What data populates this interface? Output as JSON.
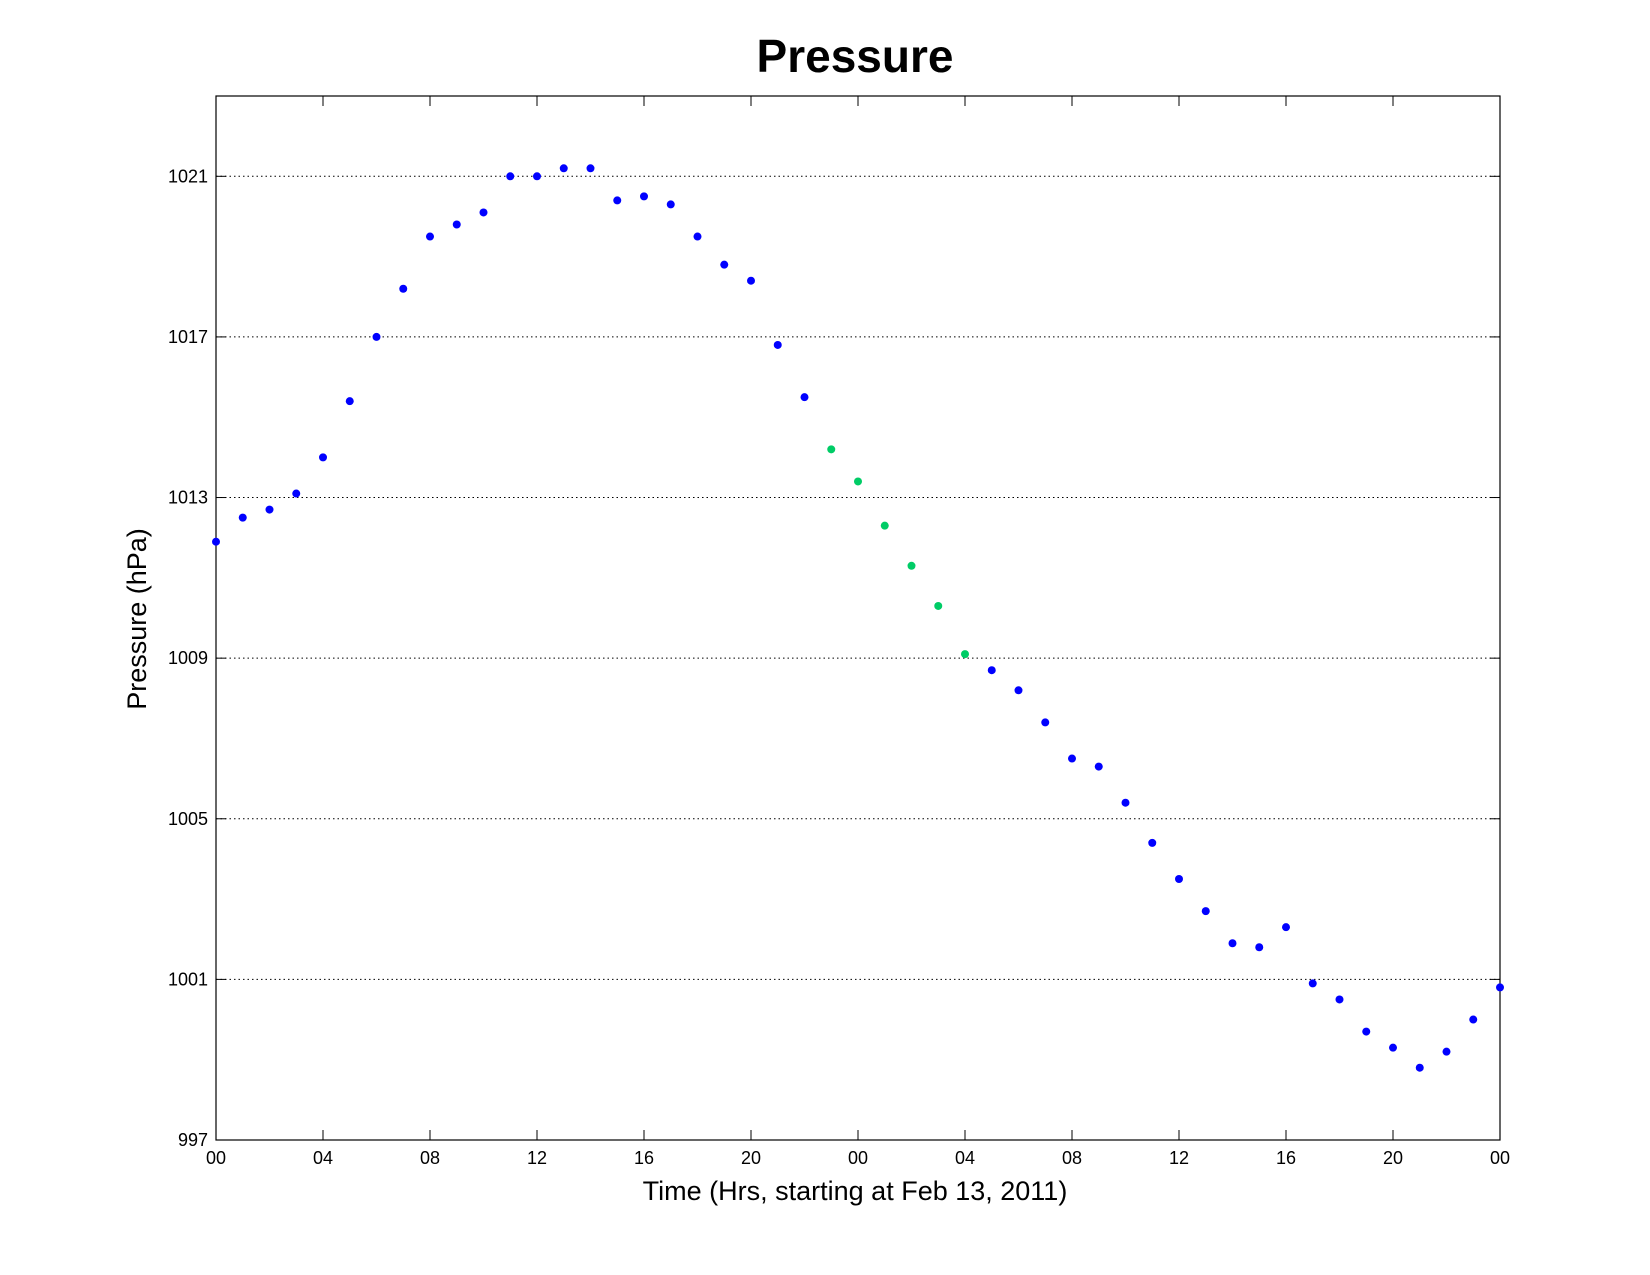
{
  "chart_data": {
    "type": "scatter",
    "title": "Pressure",
    "xlabel": "Time (Hrs, starting at Feb 13, 2011)",
    "ylabel": "Pressure (hPa)",
    "xlim": [
      "Feb 13, 2011 00:00",
      "Feb 15, 2011 00:00"
    ],
    "ylim": [
      997,
      1023
    ],
    "x_ticks": [
      "00",
      "04",
      "08",
      "12",
      "16",
      "20",
      "00",
      "04",
      "08",
      "12",
      "16",
      "20",
      "00"
    ],
    "y_ticks": [
      997,
      1001,
      1005,
      1009,
      1013,
      1017,
      1021
    ],
    "grid": "y-dotted",
    "legend": "none",
    "colors": {
      "series_1": "#0000ff",
      "series_2": "#00cc66"
    },
    "series": [
      {
        "color": "#0000ff",
        "x": [
          "Feb 13, 2011 00:00",
          "Feb 13, 2011 01:00",
          "Feb 13, 2011 02:00",
          "Feb 13, 2011 03:00",
          "Feb 13, 2011 04:00",
          "Feb 13, 2011 05:00",
          "Feb 13, 2011 06:00",
          "Feb 13, 2011 07:00",
          "Feb 13, 2011 08:00",
          "Feb 13, 2011 09:00",
          "Feb 13, 2011 10:00",
          "Feb 13, 2011 11:00",
          "Feb 13, 2011 12:00",
          "Feb 13, 2011 13:00",
          "Feb 13, 2011 14:00",
          "Feb 13, 2011 15:00",
          "Feb 13, 2011 16:00",
          "Feb 13, 2011 17:00",
          "Feb 13, 2011 18:00",
          "Feb 13, 2011 19:00",
          "Feb 13, 2011 20:00",
          "Feb 13, 2011 21:00",
          "Feb 13, 2011 22:00",
          "Feb 14, 2011 05:00",
          "Feb 14, 2011 06:00",
          "Feb 14, 2011 07:00",
          "Feb 14, 2011 08:00",
          "Feb 14, 2011 09:00",
          "Feb 14, 2011 10:00",
          "Feb 14, 2011 11:00",
          "Feb 14, 2011 12:00",
          "Feb 14, 2011 13:00",
          "Feb 14, 2011 14:00",
          "Feb 14, 2011 15:00",
          "Feb 14, 2011 16:00",
          "Feb 14, 2011 17:00",
          "Feb 14, 2011 18:00",
          "Feb 14, 2011 19:00",
          "Feb 14, 2011 20:00",
          "Feb 14, 2011 21:00",
          "Feb 14, 2011 22:00",
          "Feb 14, 2011 23:00",
          "Feb 15, 2011 00:00"
        ],
        "y": [
          1011.9,
          1012.5,
          1012.7,
          1013.1,
          1014.0,
          1015.4,
          1017.0,
          1018.2,
          1019.5,
          1019.8,
          1020.1,
          1021.0,
          1021.0,
          1021.2,
          1021.2,
          1020.4,
          1020.5,
          1020.3,
          1019.5,
          1018.8,
          1018.4,
          1016.8,
          1015.5,
          1008.7,
          1008.2,
          1007.4,
          1006.5,
          1006.3,
          1005.4,
          1004.4,
          1003.5,
          1002.7,
          1001.9,
          1001.8,
          1002.3,
          1000.9,
          1000.5,
          999.7,
          999.3,
          998.8,
          999.2,
          1000.0,
          1000.8
        ]
      },
      {
        "color": "#00cc66",
        "x": [
          "Feb 13, 2011 23:00",
          "Feb 14, 2011 00:00",
          "Feb 14, 2011 01:00",
          "Feb 14, 2011 02:00",
          "Feb 14, 2011 03:00",
          "Feb 14, 2011 04:00"
        ],
        "y": [
          1014.2,
          1013.4,
          1012.3,
          1011.3,
          1010.3,
          1009.1
        ]
      }
    ]
  }
}
